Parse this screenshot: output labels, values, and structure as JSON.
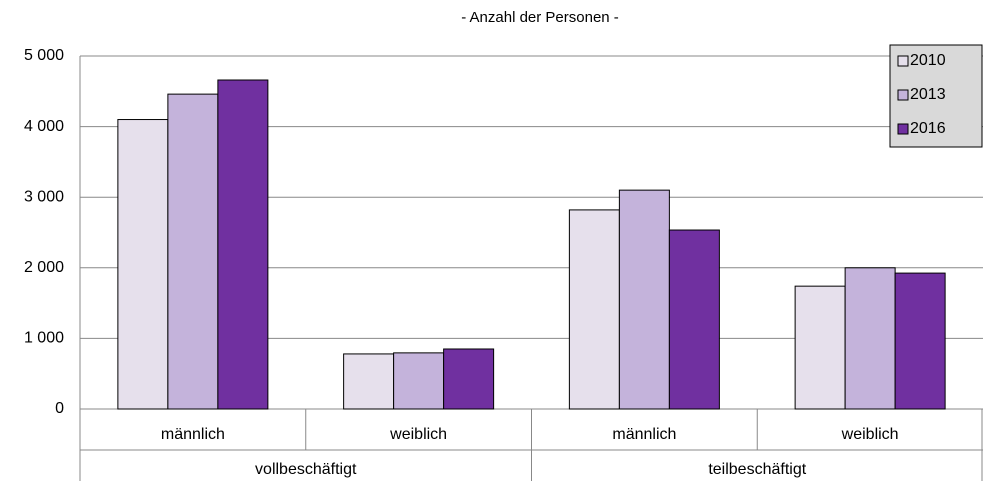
{
  "chart_data": {
    "type": "bar",
    "title": "- Anzahl der Personen -",
    "categories": [
      "männlich",
      "weiblich",
      "männlich",
      "weiblich"
    ],
    "groups": [
      "vollbeschäftigt",
      "teilbeschäftigt"
    ],
    "series": [
      {
        "name": "2010",
        "color": "#e6e0ec",
        "values": [
          4100,
          780,
          2820,
          1740
        ]
      },
      {
        "name": "2013",
        "color": "#c4b3db",
        "values": [
          4460,
          795,
          3100,
          2000
        ]
      },
      {
        "name": "2016",
        "color": "#7030a0",
        "values": [
          4660,
          850,
          2535,
          1925
        ]
      }
    ],
    "ylim": [
      0,
      5000
    ],
    "yticks": [
      0,
      {
        "value": 1000,
        "label": "1 000"
      },
      {
        "value": 2000,
        "label": "2 000"
      },
      {
        "value": 3000,
        "label": "3 000"
      },
      {
        "value": 4000,
        "label": "4 000"
      },
      {
        "value": 5000,
        "label": "5 000"
      }
    ],
    "grid": true,
    "legend": "top-right"
  }
}
